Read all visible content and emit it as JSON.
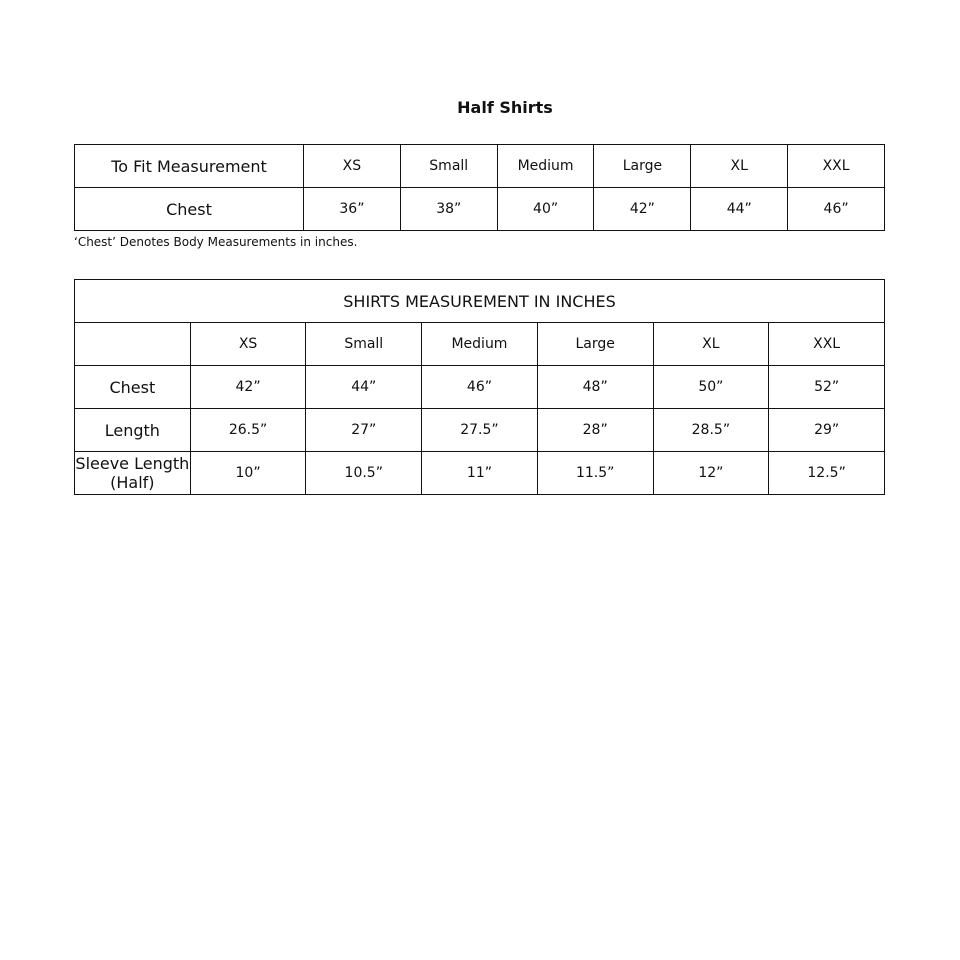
{
  "title": "Half Shirts",
  "fit_table": {
    "header": [
      "To Fit Measurement",
      "XS",
      "Small",
      "Medium",
      "Large",
      "XL",
      "XXL"
    ],
    "rows": [
      [
        "Chest",
        "36”",
        "38”",
        "40”",
        "42”",
        "44”",
        "46”"
      ]
    ]
  },
  "note": "‘Chest’ Denotes Body Measurements in inches.",
  "shirt_table": {
    "title": "SHIRTS MEASUREMENT IN INCHES",
    "header": [
      "",
      "XS",
      "Small",
      "Medium",
      "Large",
      "XL",
      "XXL"
    ],
    "rows": [
      [
        "Chest",
        "42”",
        "44”",
        "46”",
        "48”",
        "50”",
        "52”"
      ],
      [
        "Length",
        "26.5”",
        "27”",
        "27.5”",
        "28”",
        "28.5”",
        "29”"
      ],
      [
        "Sleeve Length (Half)",
        "10”",
        "10.5”",
        "11”",
        "11.5”",
        "12”",
        "12.5”"
      ]
    ]
  }
}
